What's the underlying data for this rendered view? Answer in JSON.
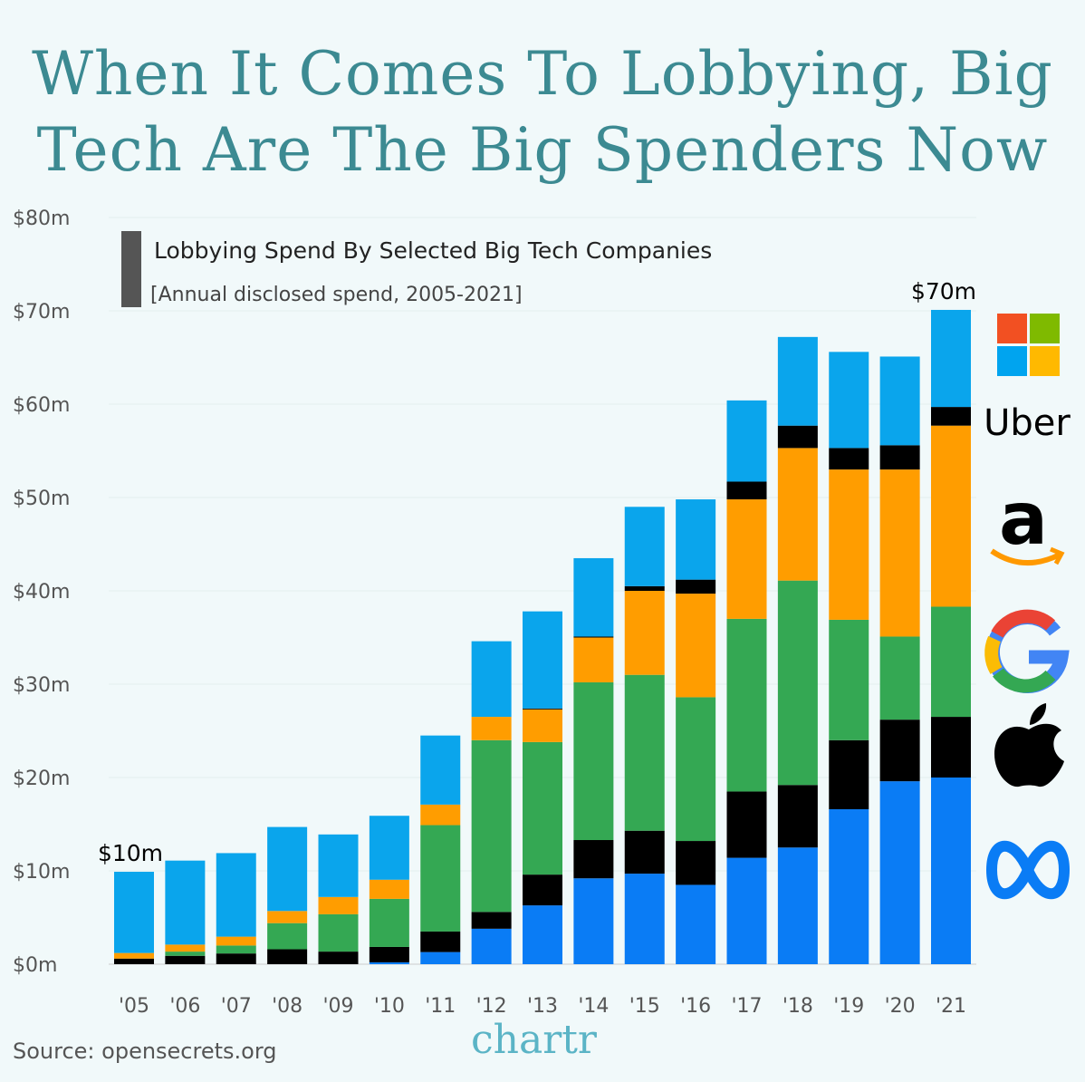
{
  "title": "When It Comes To Lobbying, Big Tech Are The Big Spenders Now",
  "source": "Source: opensecrets.org",
  "brand": "chartr",
  "chart_data": {
    "type": "bar",
    "stacked": true,
    "title": "Lobbying Spend By Selected Big Tech Companies",
    "subtitle": "[Annual disclosed spend, 2005-2021]",
    "categories": [
      "'05",
      "'06",
      "'07",
      "'08",
      "'09",
      "'10",
      "'11",
      "'12",
      "'13",
      "'14",
      "'15",
      "'16",
      "'17",
      "'18",
      "'19",
      "'20",
      "'21"
    ],
    "y_ticks": [
      "$0m",
      "$10m",
      "$20m",
      "$30m",
      "$40m",
      "$50m",
      "$60m",
      "$70m",
      "$80m"
    ],
    "ylim": [
      0,
      80
    ],
    "grid": true,
    "annotations": [
      {
        "category": "'05",
        "label": "$10m"
      },
      {
        "category": "'21",
        "label": "$70m"
      }
    ],
    "series": [
      {
        "name": "Meta",
        "logo": "meta-logo",
        "color": "#0a7cf5",
        "values": [
          0,
          0,
          0,
          0,
          0,
          0.2,
          1.3,
          3.8,
          6.3,
          9.2,
          9.7,
          8.5,
          11.4,
          12.5,
          16.6,
          19.6,
          20.0
        ]
      },
      {
        "name": "Apple",
        "logo": "apple-logo",
        "color": "#000000",
        "values": [
          0.6,
          0.9,
          1.15,
          1.6,
          1.35,
          1.65,
          2.2,
          1.8,
          3.3,
          4.1,
          4.6,
          4.7,
          7.1,
          6.7,
          7.4,
          6.6,
          6.5
        ]
      },
      {
        "name": "Google",
        "logo": "google-logo",
        "color": "#34a853",
        "values": [
          0,
          0.45,
          0.85,
          2.8,
          4.0,
          5.15,
          11.4,
          18.4,
          14.2,
          16.9,
          16.7,
          15.4,
          18.5,
          21.9,
          12.9,
          8.9,
          11.8
        ]
      },
      {
        "name": "Amazon",
        "logo": "amazon-logo",
        "color": "#ff9d00",
        "values": [
          0.6,
          0.75,
          0.95,
          1.3,
          1.85,
          2.05,
          2.2,
          2.5,
          3.5,
          4.8,
          9.0,
          11.1,
          12.8,
          14.2,
          16.1,
          17.9,
          19.4
        ]
      },
      {
        "name": "Uber",
        "logo": "uber-logo",
        "color": "#000000",
        "values": [
          0,
          0,
          0,
          0,
          0,
          0,
          0,
          0,
          0.1,
          0.1,
          0.5,
          1.5,
          1.9,
          2.4,
          2.3,
          2.6,
          2.0
        ]
      },
      {
        "name": "Microsoft",
        "logo": "microsoft-logo",
        "color": "#0aa5ec",
        "values": [
          8.7,
          9.0,
          8.95,
          9.0,
          6.7,
          6.85,
          7.4,
          8.1,
          10.4,
          8.4,
          8.5,
          8.6,
          8.7,
          9.5,
          10.3,
          9.5,
          10.4
        ]
      }
    ]
  },
  "logos": {
    "uber": "Uber",
    "amazon": "a",
    "google": "G"
  }
}
